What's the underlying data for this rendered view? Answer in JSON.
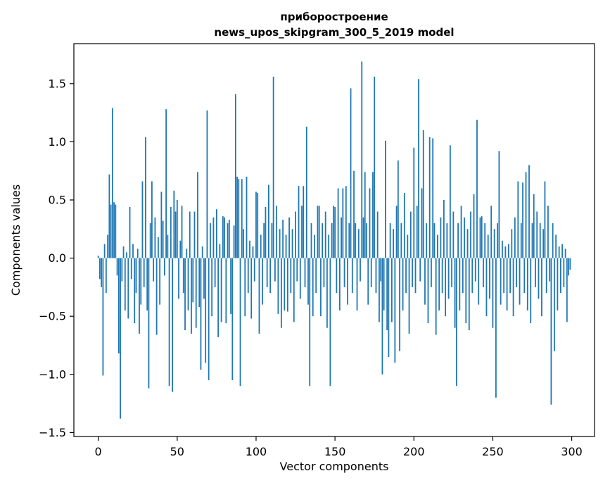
{
  "figure": {
    "title_line1": "приборостроение",
    "title_line2": "news_upos_skipgram_300_5_2019 model",
    "xlabel": "Vector components",
    "ylabel": "Components values"
  },
  "chart_data": {
    "type": "bar",
    "title": "приборостроение\nnews_upos_skipgram_300_5_2019 model",
    "xlabel": "Vector components",
    "ylabel": "Components values",
    "legend": null,
    "grid": false,
    "bar_color": "#1f77b4",
    "xlim": [
      -15.45,
      314.45
    ],
    "ylim": [
      -1.534,
      1.844
    ],
    "xticks": [
      0,
      50,
      100,
      150,
      200,
      250,
      300
    ],
    "xtick_labels": [
      "0",
      "50",
      "100",
      "150",
      "200",
      "250",
      "300"
    ],
    "yticks": [
      -1.5,
      -1.0,
      -0.5,
      0.0,
      0.5,
      1.0,
      1.5
    ],
    "ytick_labels": [
      "−1.5",
      "−1.0",
      "−0.5",
      "0.0",
      "0.5",
      "1.0",
      "1.5"
    ],
    "x_description": "component index 0..299",
    "values": [
      0.02,
      -0.18,
      -0.25,
      -1.01,
      0.12,
      -0.3,
      0.2,
      0.72,
      0.46,
      1.29,
      0.48,
      0.46,
      -0.15,
      -0.82,
      -1.38,
      -0.2,
      0.1,
      -0.45,
      0.05,
      -0.52,
      0.44,
      -0.18,
      0.12,
      -0.56,
      -0.3,
      0.08,
      -0.65,
      -0.4,
      0.66,
      -0.25,
      1.04,
      -0.45,
      -1.12,
      0.3,
      0.66,
      -0.2,
      0.35,
      -0.66,
      0.18,
      -0.4,
      0.57,
      0.32,
      -0.15,
      1.28,
      0.2,
      -1.1,
      0.44,
      -1.15,
      0.58,
      0.4,
      0.5,
      -0.35,
      0.15,
      0.45,
      -0.3,
      -0.62,
      0.08,
      -0.45,
      0.4,
      -0.65,
      -0.38,
      0.4,
      -0.6,
      0.74,
      -0.42,
      -0.96,
      0.1,
      -0.35,
      -0.9,
      1.27,
      -1.05,
      0.3,
      -0.5,
      0.35,
      -0.25,
      0.42,
      -0.68,
      0.12,
      -0.55,
      0.36,
      0.35,
      -0.56,
      0.3,
      0.33,
      -0.48,
      -1.05,
      0.28,
      1.41,
      0.7,
      0.68,
      -1.1,
      0.68,
      0.25,
      -0.5,
      0.7,
      -0.3,
      0.15,
      -0.52,
      0.1,
      -0.2,
      0.57,
      0.56,
      -0.65,
      0.2,
      -0.4,
      0.3,
      0.44,
      -0.25,
      0.63,
      -0.3,
      0.3,
      1.56,
      -0.2,
      0.45,
      -0.48,
      0.25,
      -0.6,
      0.33,
      -0.45,
      0.2,
      -0.46,
      0.35,
      -0.3,
      0.25,
      -0.55,
      0.4,
      -0.2,
      0.62,
      -0.35,
      0.45,
      0.62,
      -0.25,
      1.13,
      -0.4,
      -1.1,
      0.3,
      -0.5,
      0.2,
      -0.3,
      0.45,
      0.45,
      -0.5,
      0.3,
      -0.25,
      0.4,
      -0.6,
      0.2,
      -1.1,
      0.3,
      0.45,
      0.44,
      -0.3,
      0.6,
      -0.45,
      0.35,
      0.6,
      -0.25,
      0.62,
      -0.4,
      0.3,
      1.46,
      -0.3,
      0.75,
      0.3,
      -0.45,
      0.25,
      -0.2,
      1.69,
      0.35,
      0.74,
      0.3,
      -0.4,
      0.6,
      -0.25,
      0.74,
      1.56,
      -0.3,
      0.4,
      -0.55,
      -0.2,
      -1.0,
      -0.45,
      1.01,
      -0.62,
      -0.85,
      0.3,
      -0.55,
      0.25,
      -0.9,
      0.45,
      0.84,
      -0.8,
      0.3,
      -0.45,
      0.56,
      -0.3,
      0.2,
      -0.65,
      0.4,
      -0.25,
      0.95,
      -0.3,
      0.45,
      1.54,
      -0.2,
      0.6,
      1.1,
      -0.4,
      0.3,
      -0.56,
      1.04,
      -0.25,
      1.03,
      0.3,
      -0.66,
      0.2,
      -0.45,
      0.35,
      -0.3,
      0.5,
      -0.5,
      0.3,
      -0.35,
      0.97,
      -0.25,
      0.4,
      -0.6,
      -1.1,
      0.3,
      -0.45,
      0.45,
      -0.3,
      0.35,
      -0.56,
      0.25,
      -0.62,
      0.4,
      -0.3,
      0.55,
      -0.2,
      1.19,
      -0.4,
      0.35,
      0.36,
      -0.25,
      0.3,
      -0.5,
      0.2,
      -0.35,
      0.45,
      -0.6,
      0.25,
      -1.2,
      0.3,
      0.92,
      -0.4,
      0.15,
      -0.3,
      0.1,
      -0.45,
      0.12,
      -0.3,
      0.25,
      -0.5,
      0.35,
      -0.25,
      0.66,
      -0.4,
      0.3,
      0.65,
      -0.3,
      0.74,
      -0.45,
      0.8,
      -0.56,
      0.3,
      0.55,
      -0.25,
      0.4,
      -0.35,
      0.3,
      -0.5,
      0.25,
      0.66,
      -0.3,
      0.45,
      -0.2,
      -1.26,
      0.3,
      -0.8,
      0.2,
      -0.45,
      0.1,
      -0.3,
      0.12,
      -0.25,
      0.08,
      -0.55,
      -0.15,
      -0.1
    ]
  }
}
